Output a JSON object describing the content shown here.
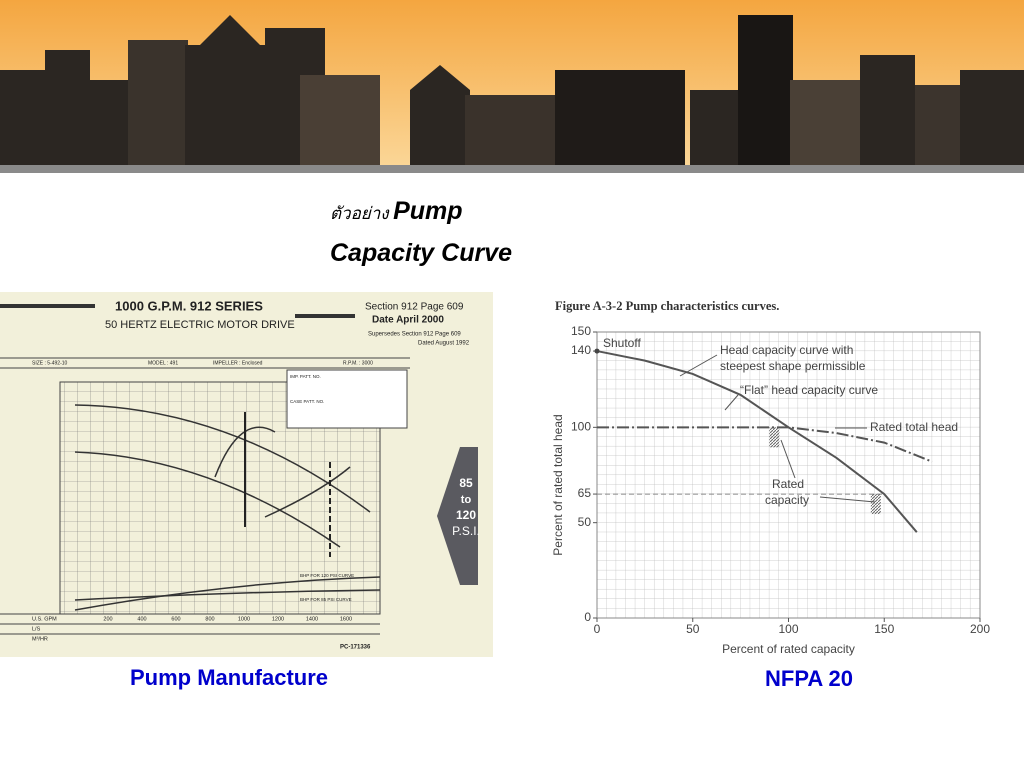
{
  "slide": {
    "title_thai": "ตัวอย่าง",
    "title_en_1": "Pump",
    "title_en_2": "Capacity Curve",
    "caption_left": "Pump Manufacture",
    "caption_right": "NFPA 20"
  },
  "manufacturer_sheet": {
    "title": "1000 G.P.M. 912 SERIES",
    "subtitle": "50 HERTZ ELECTRIC MOTOR DRIVE",
    "section": "Section 912 Page 609",
    "date": "Date April 2000",
    "supersedes": "Supersedes Section 912 Page 609",
    "dated": "Dated August 1992",
    "size": "SIZE : 5-492-10",
    "model": "MODEL : 491",
    "impeller": "IMPELLER : Enclosed",
    "rpm": "R.P.M. : 3000",
    "imp_patt": "IMP. PATT. NO.",
    "case_patt": "CASE PATT. NO.",
    "gpm_label": "U.S. GPM",
    "gpm_values": [
      "200",
      "400",
      "600",
      "800",
      "1000",
      "1200",
      "1400",
      "1600"
    ],
    "ls_label": "L/S",
    "m3hr_label": "M³/HR",
    "bhp_120": "BHP FOR 120 PSI CURVE",
    "bhp_85": "BHP FOR 85 PSI CURVE",
    "badge": [
      "85",
      "to",
      "120",
      "P.S.I."
    ],
    "code": "PC-171336"
  },
  "nfpa_figure": {
    "type": "line",
    "title": "Figure A-3-2  Pump characteristics curves.",
    "x_label": "Percent of rated capacity",
    "y_label": "Percent of rated total head",
    "xlim": [
      0,
      200
    ],
    "xticks": [
      0,
      50,
      100,
      150,
      200
    ],
    "ylim": [
      0,
      150
    ],
    "yticks": [
      0,
      50,
      65,
      100,
      140,
      150
    ],
    "series": [
      {
        "name": "Head capacity curve with steepest shape permissible",
        "color": "#555555",
        "x": [
          0,
          25,
          50,
          75,
          100,
          125,
          150,
          167
        ],
        "values": [
          140,
          135,
          128,
          117,
          100,
          84,
          65,
          45
        ]
      },
      {
        "name": "“Flat” head capacity curve",
        "color": "#555555",
        "x": [
          0,
          50,
          100,
          125,
          150,
          175
        ],
        "values": [
          100,
          100,
          100,
          97,
          92,
          82
        ]
      }
    ],
    "annotations": {
      "shutoff": "Shutoff",
      "steep": [
        "Head capacity curve with",
        "steepest shape permissible"
      ],
      "flat": "“Flat” head capacity curve",
      "rated_head": "Rated total head",
      "rated_capacity": [
        "Rated",
        "capacity"
      ]
    }
  }
}
